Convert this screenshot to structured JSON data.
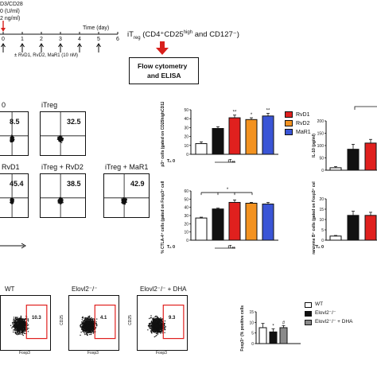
{
  "timeline": {
    "top_label_1": "D3/CD28",
    "top_label_2": "0 (U/ml)",
    "top_label_3": "2 ng/ml)",
    "axis_label": "Time (day)",
    "ticks": [
      "0",
      "1",
      "2",
      "3",
      "4",
      "5",
      "6"
    ],
    "treatment": "± RvD1, RvD2, MaR1 (10 nM)",
    "itreg_title": "iT",
    "itreg_sub": "reg",
    "itreg_rest": " (CD4⁺CD25",
    "itreg_high": "high",
    "itreg_end": " and CD127⁻)",
    "analysis_line1": "Flow cytometry",
    "analysis_line2": "and ELISA"
  },
  "flow_plots_top": [
    {
      "title": "0",
      "value": "8.5"
    },
    {
      "title": "iTreg",
      "value": "32.5"
    },
    {
      "title": "RvD1",
      "value": "45.4"
    },
    {
      "title": "iTreg + RvD2",
      "value": "38.5"
    },
    {
      "title": "iTreg + MaR1",
      "value": "42.9"
    }
  ],
  "legend_top": [
    {
      "label": "RvD1",
      "color": "#e0201e"
    },
    {
      "label": "RvD2",
      "color": "#f39220"
    },
    {
      "label": "MaR1",
      "color": "#3a55d6"
    }
  ],
  "legend_bottom": [
    {
      "label": "WT",
      "color": "#ffffff"
    },
    {
      "label": "Elovl2⁻/⁻",
      "color": "#111111"
    },
    {
      "label": "Elovl2⁻/⁻ + DHA",
      "color": "#8a8a8a"
    }
  ],
  "flow_plots_bottom": [
    {
      "title": "WT",
      "value": "10.3"
    },
    {
      "title": "Elovl2⁻/⁻",
      "value": "4.1"
    },
    {
      "title": "Elovl2⁻/⁻ + DHA",
      "value": "9.3"
    }
  ],
  "chart_data": [
    {
      "type": "bar",
      "ylabel": "% Foxp3⁺ cells (gated on CD25highCD127⁻ cells)",
      "categories": [
        "Th0",
        "iTreg",
        "RvD1",
        "RvD2",
        "MaR1"
      ],
      "xlabels": [
        "Tᴴ 0",
        "iTₑₑ"
      ],
      "values": [
        12,
        29,
        41,
        39,
        43
      ],
      "colors": [
        "#ffffff",
        "#111111",
        "#e0201e",
        "#f39220",
        "#3a55d6"
      ],
      "ylim": [
        0,
        50
      ],
      "ticks": [
        "0",
        "10",
        "20",
        "30",
        "40",
        "50"
      ],
      "annotations": [
        "**",
        "*",
        "**"
      ],
      "group_labels": [
        "Tₙ 0",
        "iTₑₑ"
      ]
    },
    {
      "type": "bar",
      "ylabel": "% CTLA-4⁺ cells (gated on Foxp3⁺ cells)",
      "categories": [
        "Th0",
        "iTreg",
        "RvD1",
        "RvD2",
        "MaR1"
      ],
      "values": [
        27,
        38,
        46,
        45,
        44
      ],
      "colors": [
        "#ffffff",
        "#111111",
        "#e0201e",
        "#f39220",
        "#3a55d6"
      ],
      "ylim": [
        0,
        60
      ],
      "ticks": [
        "0",
        "10",
        "20",
        "30",
        "40",
        "50",
        "60"
      ],
      "annotations": [
        "*"
      ],
      "group_labels": [
        "Tₙ 0",
        "iTₑₑ"
      ]
    },
    {
      "type": "bar",
      "ylabel": "IL-10 (pg/ml)",
      "categories": [
        "Th0",
        "iTreg",
        "RvD1"
      ],
      "values": [
        10,
        85,
        110
      ],
      "colors": [
        "#ffffff",
        "#111111",
        "#e0201e"
      ],
      "ylim": [
        0,
        200
      ],
      "ticks": [
        "0",
        "50",
        "100",
        "150",
        "200"
      ]
    },
    {
      "type": "bar",
      "ylabel": "% Granzyme B⁺ cells (gated on Foxp3⁺ cells)",
      "categories": [
        "Th0",
        "iTreg",
        "RvD1"
      ],
      "values": [
        2,
        12,
        12
      ],
      "colors": [
        "#ffffff",
        "#111111",
        "#e0201e"
      ],
      "ylim": [
        0,
        20
      ],
      "ticks": [
        "0",
        "5",
        "10",
        "15",
        "20"
      ],
      "group_labels": [
        "Tₙ 0"
      ]
    },
    {
      "type": "bar",
      "ylabel": "Foxp3⁺ (% positive cells)",
      "categories": [
        "WT",
        "Elovl2-/-",
        "Elovl2-/- + DHA"
      ],
      "values": [
        7.5,
        5.5,
        7.5
      ],
      "colors": [
        "#ffffff",
        "#111111",
        "#8a8a8a"
      ],
      "ylim": [
        0,
        15
      ],
      "ticks": [
        "0",
        "5",
        "10",
        "15"
      ],
      "annotations": [
        "*",
        "#"
      ]
    }
  ],
  "axes_small": {
    "cd25": "CD25",
    "foxp3": "Foxp3",
    "t1": "10²",
    "t2": "10³",
    "t3": "10⁴",
    "t4": "10⁵"
  }
}
